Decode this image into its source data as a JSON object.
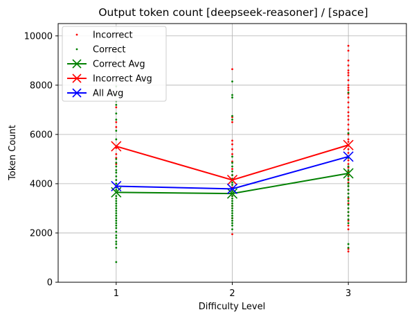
{
  "chart_data": {
    "type": "scatter",
    "title": "Output token count [deepseek-reasoner] / [space]",
    "xlabel": "Difficulty Level",
    "ylabel": "Token Count",
    "xlim": [
      0.5,
      3.5
    ],
    "ylim": [
      0,
      10500
    ],
    "xticks": [
      1,
      2,
      3
    ],
    "yticks": [
      0,
      2000,
      4000,
      6000,
      8000,
      10000
    ],
    "grid": true,
    "legend_position": "top-left",
    "colors": {
      "incorrect": "#ff0000",
      "correct": "#008000",
      "all": "#0000ff"
    },
    "series": [
      {
        "name": "Incorrect",
        "kind": "points",
        "color": "#ff0000",
        "points": [
          [
            1,
            5450
          ],
          [
            1,
            5050
          ],
          [
            1,
            4800
          ],
          [
            1,
            6500
          ],
          [
            1,
            7100
          ],
          [
            1,
            6300
          ],
          [
            1,
            5200
          ],
          [
            2,
            8650
          ],
          [
            2,
            6700
          ],
          [
            2,
            6500
          ],
          [
            2,
            5750
          ],
          [
            2,
            5600
          ],
          [
            2,
            5400
          ],
          [
            2,
            5200
          ],
          [
            2,
            4900
          ],
          [
            2,
            4600
          ],
          [
            2,
            4350
          ],
          [
            2,
            4150
          ],
          [
            2,
            3850
          ],
          [
            2,
            3500
          ],
          [
            2,
            3100
          ],
          [
            2,
            2600
          ],
          [
            2,
            1950
          ],
          [
            3,
            9600
          ],
          [
            3,
            9400
          ],
          [
            3,
            9000
          ],
          [
            3,
            8800
          ],
          [
            3,
            8600
          ],
          [
            3,
            8500
          ],
          [
            3,
            8400
          ],
          [
            3,
            8200
          ],
          [
            3,
            8000
          ],
          [
            3,
            7900
          ],
          [
            3,
            7800
          ],
          [
            3,
            7650
          ],
          [
            3,
            7500
          ],
          [
            3,
            7300
          ],
          [
            3,
            7100
          ],
          [
            3,
            6900
          ],
          [
            3,
            6750
          ],
          [
            3,
            6600
          ],
          [
            3,
            6400
          ],
          [
            3,
            6200
          ],
          [
            3,
            6000
          ],
          [
            3,
            5800
          ],
          [
            3,
            5700
          ],
          [
            3,
            5550
          ],
          [
            3,
            5400
          ],
          [
            3,
            5250
          ],
          [
            3,
            5100
          ],
          [
            3,
            4950
          ],
          [
            3,
            4800
          ],
          [
            3,
            4650
          ],
          [
            3,
            4500
          ],
          [
            3,
            4350
          ],
          [
            3,
            4200
          ],
          [
            3,
            4050
          ],
          [
            3,
            3900
          ],
          [
            3,
            3750
          ],
          [
            3,
            3600
          ],
          [
            3,
            3400
          ],
          [
            3,
            3200
          ],
          [
            3,
            3000
          ],
          [
            3,
            2850
          ],
          [
            3,
            2700
          ],
          [
            3,
            2500
          ],
          [
            3,
            2300
          ],
          [
            3,
            2150
          ],
          [
            3,
            1350
          ],
          [
            3,
            1250
          ]
        ]
      },
      {
        "name": "Correct",
        "kind": "points",
        "color": "#008000",
        "points": [
          [
            1,
            7950
          ],
          [
            1,
            7600
          ],
          [
            1,
            7350
          ],
          [
            1,
            7200
          ],
          [
            1,
            6850
          ],
          [
            1,
            6600
          ],
          [
            1,
            6150
          ],
          [
            1,
            5800
          ],
          [
            1,
            5000
          ],
          [
            1,
            4850
          ],
          [
            1,
            4700
          ],
          [
            1,
            4550
          ],
          [
            1,
            4450
          ],
          [
            1,
            4300
          ],
          [
            1,
            4150
          ],
          [
            1,
            4000
          ],
          [
            1,
            3850
          ],
          [
            1,
            3750
          ],
          [
            1,
            3650
          ],
          [
            1,
            3500
          ],
          [
            1,
            3400
          ],
          [
            1,
            3300
          ],
          [
            1,
            3200
          ],
          [
            1,
            3100
          ],
          [
            1,
            3000
          ],
          [
            1,
            2900
          ],
          [
            1,
            2800
          ],
          [
            1,
            2700
          ],
          [
            1,
            2600
          ],
          [
            1,
            2500
          ],
          [
            1,
            2400
          ],
          [
            1,
            2300
          ],
          [
            1,
            2200
          ],
          [
            1,
            2050
          ],
          [
            1,
            1900
          ],
          [
            1,
            1800
          ],
          [
            1,
            1650
          ],
          [
            1,
            1550
          ],
          [
            1,
            1400
          ],
          [
            1,
            820
          ],
          [
            2,
            8150
          ],
          [
            2,
            7600
          ],
          [
            2,
            7500
          ],
          [
            2,
            6750
          ],
          [
            2,
            6600
          ],
          [
            2,
            5100
          ],
          [
            2,
            4850
          ],
          [
            2,
            4700
          ],
          [
            2,
            4500
          ],
          [
            2,
            4350
          ],
          [
            2,
            4200
          ],
          [
            2,
            4050
          ],
          [
            2,
            3950
          ],
          [
            2,
            3800
          ],
          [
            2,
            3700
          ],
          [
            2,
            3600
          ],
          [
            2,
            3500
          ],
          [
            2,
            3400
          ],
          [
            2,
            3300
          ],
          [
            2,
            3200
          ],
          [
            2,
            3100
          ],
          [
            2,
            3000
          ],
          [
            2,
            2900
          ],
          [
            2,
            2800
          ],
          [
            2,
            2700
          ],
          [
            2,
            2600
          ],
          [
            2,
            2500
          ],
          [
            2,
            2400
          ],
          [
            2,
            2300
          ],
          [
            2,
            2150
          ],
          [
            3,
            7700
          ],
          [
            3,
            6050
          ],
          [
            3,
            5050
          ],
          [
            3,
            4700
          ],
          [
            3,
            4550
          ],
          [
            3,
            4450
          ],
          [
            3,
            4300
          ],
          [
            3,
            4150
          ],
          [
            3,
            4000
          ],
          [
            3,
            3900
          ],
          [
            3,
            3750
          ],
          [
            3,
            3600
          ],
          [
            3,
            3450
          ],
          [
            3,
            3300
          ],
          [
            3,
            3150
          ],
          [
            3,
            3000
          ],
          [
            3,
            2850
          ],
          [
            3,
            2700
          ],
          [
            3,
            2550
          ],
          [
            3,
            2400
          ],
          [
            3,
            1550
          ],
          [
            3,
            1400
          ]
        ]
      },
      {
        "name": "Correct Avg",
        "kind": "line",
        "color": "#008000",
        "x": [
          1,
          2,
          3
        ],
        "values": [
          3650,
          3600,
          4420
        ]
      },
      {
        "name": "Incorrect Avg",
        "kind": "line",
        "color": "#ff0000",
        "x": [
          1,
          2,
          3
        ],
        "values": [
          5520,
          4150,
          5570
        ]
      },
      {
        "name": "All Avg",
        "kind": "line",
        "color": "#0000ff",
        "x": [
          1,
          2,
          3
        ],
        "values": [
          3900,
          3790,
          5100
        ]
      }
    ]
  }
}
